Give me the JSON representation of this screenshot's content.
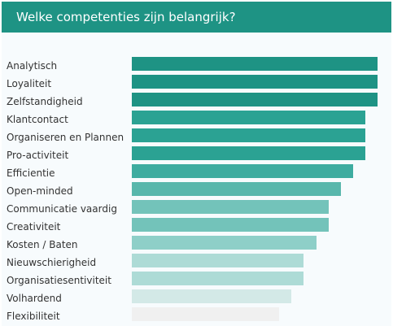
{
  "header": {
    "title": "Welke competenties zijn belangrijk?"
  },
  "chart_data": {
    "type": "bar",
    "orientation": "horizontal",
    "categories": [
      "Analytisch",
      "Loyaliteit",
      "Zelfstandigheid",
      "Klantcontact",
      "Organiseren en Plannen",
      "Pro-activiteit",
      "Efficientie",
      "Open-minded",
      "Communicatie vaardig",
      "Creativiteit",
      "Kosten / Baten",
      "Nieuwschierigheid",
      "Organisatiesentiviteit",
      "Volhardend",
      "Flexibiliteit"
    ],
    "values": [
      100,
      100,
      100,
      95,
      95,
      95,
      90,
      85,
      80,
      80,
      75,
      70,
      70,
      65,
      60
    ],
    "xlim": [
      0,
      100
    ],
    "colors": [
      "#1e9384",
      "#1e9384",
      "#1e9384",
      "#2ba293",
      "#2ba293",
      "#2ba293",
      "#3eaca0",
      "#58b7ac",
      "#73c3ba",
      "#73c3ba",
      "#8ecfc8",
      "#addbd6",
      "#addbd6",
      "#d3e9e7",
      "#f0f0f0"
    ],
    "title": "Welke competenties zijn belangrijk?",
    "xlabel": "",
    "ylabel": "",
    "grid": false,
    "legend": "none"
  }
}
